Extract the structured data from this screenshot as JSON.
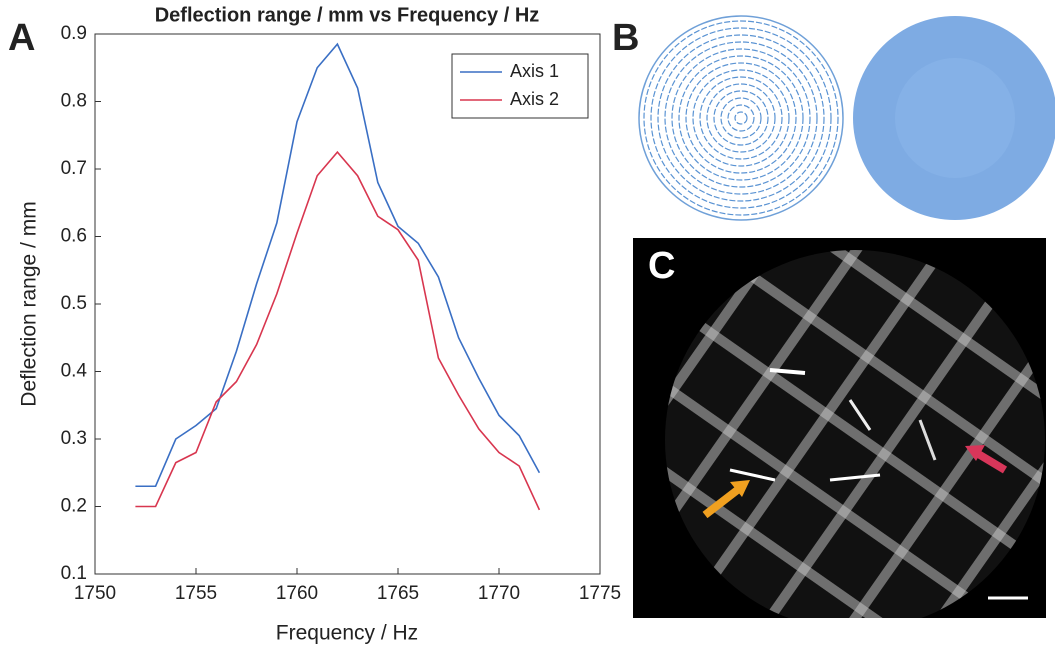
{
  "chart_data": {
    "type": "line",
    "title": "Deflection range / mm vs Frequency / Hz",
    "x_label": "Frequency / Hz",
    "y_label": "Deflection range / mm",
    "x": [
      1752,
      1753,
      1754,
      1755,
      1756,
      1757,
      1758,
      1759,
      1760,
      1761,
      1762,
      1763,
      1764,
      1765,
      1766,
      1767,
      1768,
      1769,
      1770,
      1771,
      1772
    ],
    "series": [
      {
        "name": "Axis 1",
        "color": "#3a6fc4",
        "values": [
          0.23,
          0.23,
          0.3,
          0.32,
          0.345,
          0.43,
          0.53,
          0.62,
          0.77,
          0.85,
          0.885,
          0.82,
          0.68,
          0.615,
          0.59,
          0.54,
          0.45,
          0.39,
          0.335,
          0.305,
          0.25
        ]
      },
      {
        "name": "Axis 2",
        "color": "#d8364f",
        "values": [
          0.2,
          0.2,
          0.265,
          0.28,
          0.355,
          0.385,
          0.44,
          0.515,
          0.605,
          0.69,
          0.725,
          0.69,
          0.63,
          0.61,
          0.565,
          0.42,
          0.365,
          0.315,
          0.28,
          0.26,
          0.195
        ]
      }
    ],
    "xlim": [
      1750,
      1775
    ],
    "xticks": [
      1750,
      1755,
      1760,
      1765,
      1770,
      1775
    ],
    "ylim": [
      0.1,
      0.9
    ],
    "yticks": [
      0.1,
      0.2,
      0.3,
      0.4,
      0.5,
      0.6,
      0.7,
      0.8,
      0.9
    ],
    "legend": "top-right"
  },
  "panel_labels": [
    "A",
    "B",
    "C"
  ]
}
